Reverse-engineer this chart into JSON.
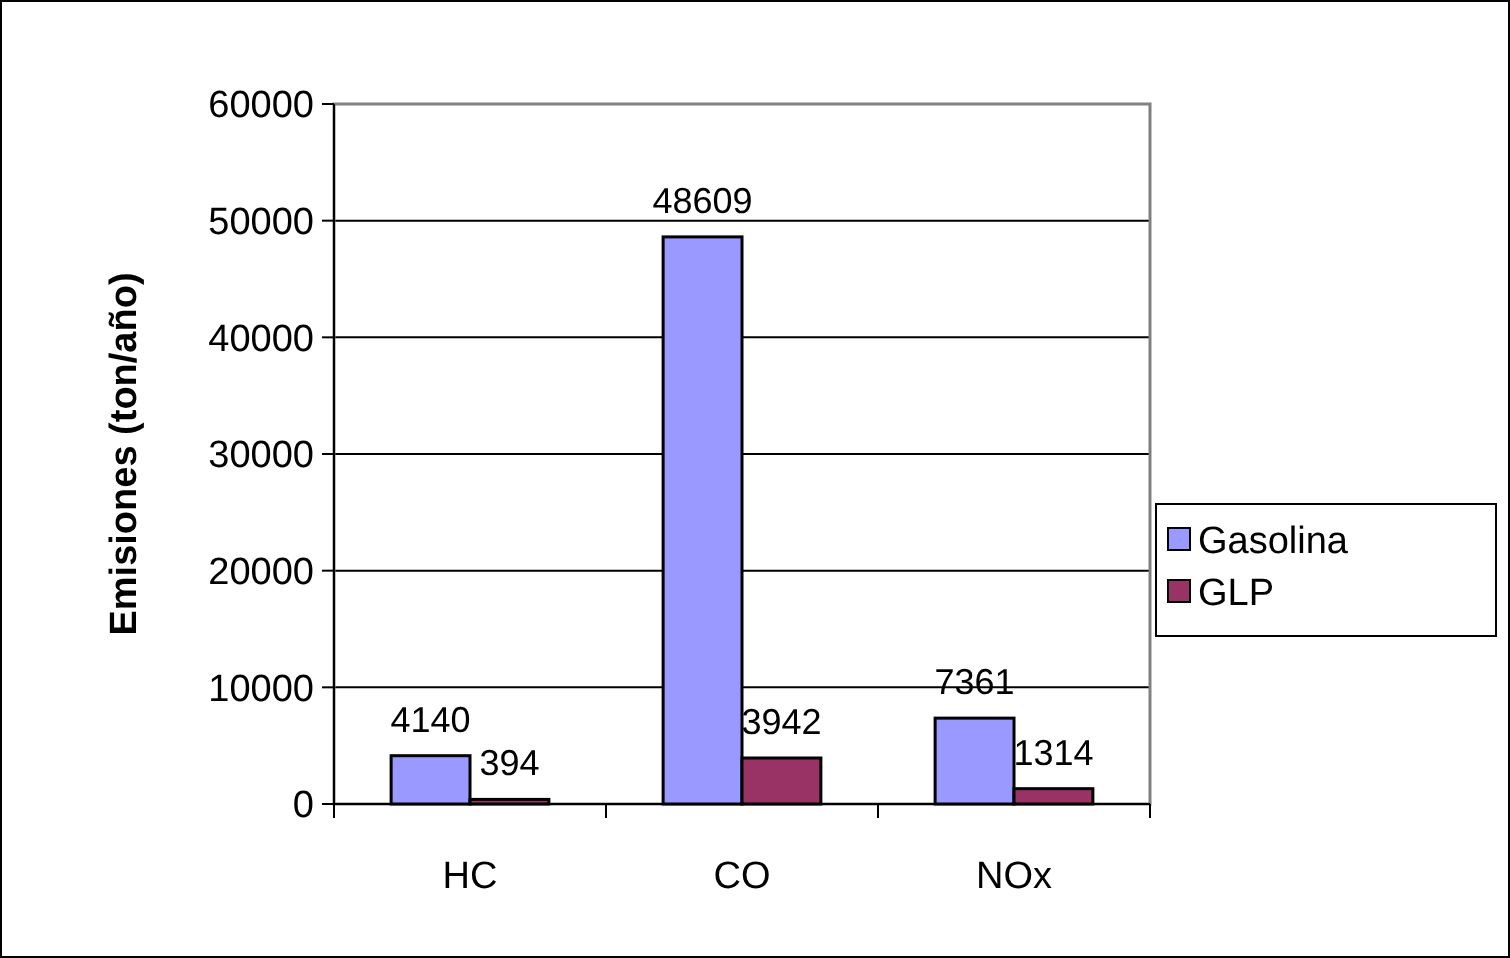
{
  "chart_data": {
    "type": "bar",
    "ylabel": "Emisiones (ton/año)",
    "categories": [
      "HC",
      "CO",
      "NOx"
    ],
    "series": [
      {
        "name": "Gasolina",
        "color": "#9999ff",
        "values": [
          4140,
          48609,
          7361
        ]
      },
      {
        "name": "GLP",
        "color": "#993366",
        "values": [
          394,
          3942,
          1314
        ]
      }
    ],
    "ylim": [
      0,
      60000
    ],
    "yticks": [
      0,
      10000,
      20000,
      30000,
      40000,
      50000,
      60000
    ],
    "grid": "y",
    "legend": "right",
    "data_labels": true
  }
}
